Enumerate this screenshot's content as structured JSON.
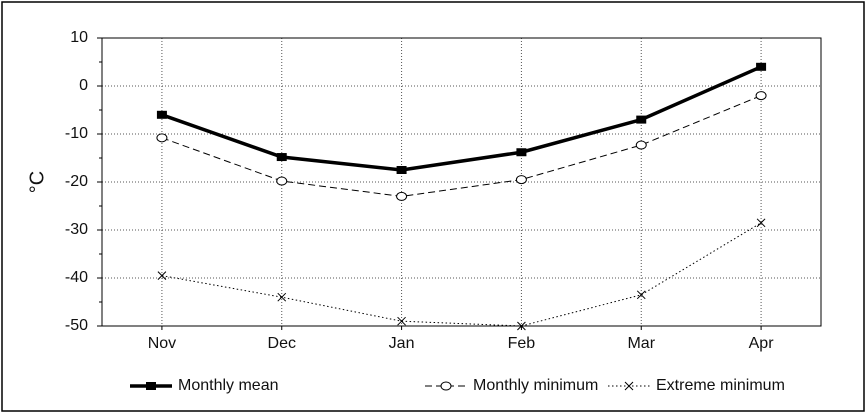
{
  "chart_data": {
    "type": "line",
    "y_label": "°C",
    "categories": [
      "Nov",
      "Dec",
      "Jan",
      "Feb",
      "Mar",
      "Apr"
    ],
    "series": [
      {
        "name": "Monthly mean",
        "color": "#000000",
        "line_style": "solid",
        "marker": "square",
        "values": [
          -6,
          -14.8,
          -17.5,
          -13.8,
          -7,
          4
        ]
      },
      {
        "name": "Monthly minimum",
        "color": "#000000",
        "line_style": "dashed",
        "marker": "circle",
        "values": [
          -10.8,
          -19.8,
          -23,
          -19.5,
          -12.3,
          -2
        ]
      },
      {
        "name": "Extreme minimum",
        "color": "#000000",
        "line_style": "dotted",
        "marker": "x",
        "values": [
          -39.5,
          -44,
          -49,
          -50,
          -43.5,
          -28.5
        ]
      }
    ],
    "ylim": [
      -50,
      10
    ],
    "yticks": [
      -50,
      -40,
      -30,
      -20,
      -10,
      0,
      10
    ],
    "grid": true
  }
}
